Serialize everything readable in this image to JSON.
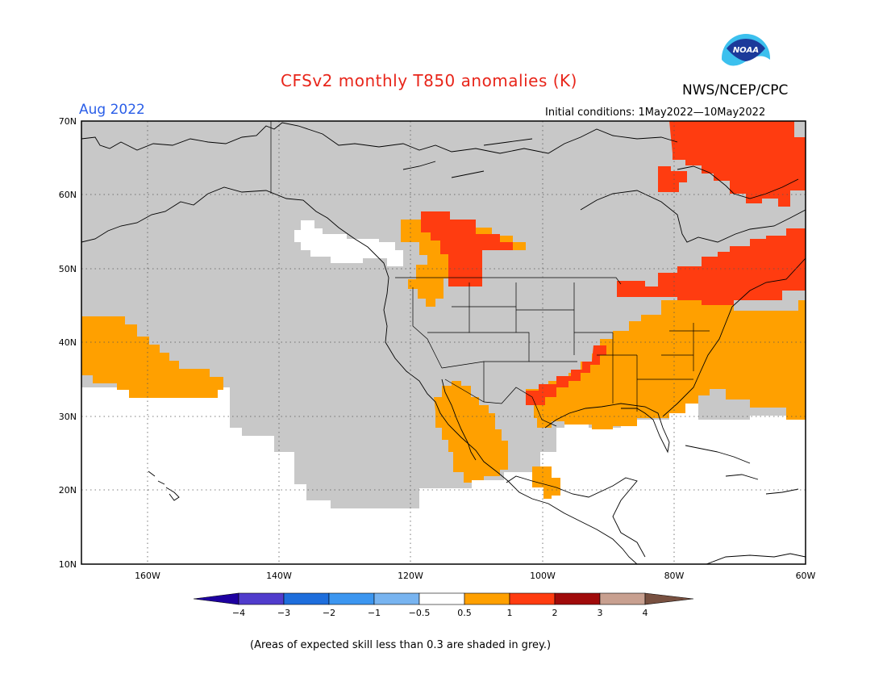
{
  "header": {
    "title": "CFSv2 monthly T850 anomalies (K)",
    "agency": "NWS/NCEP/CPC",
    "period": "Aug 2022",
    "initial_conditions": "Initial conditions: 1May2022—10May2022",
    "logo": {
      "icon": "noaa-logo-icon",
      "text": "NOAA"
    }
  },
  "map": {
    "lat_labels": [
      "70N",
      "60N",
      "50N",
      "40N",
      "30N",
      "20N",
      "10N"
    ],
    "lon_labels": [
      "160W",
      "140W",
      "120W",
      "100W",
      "80W",
      "60W"
    ],
    "lat_range": [
      10,
      70
    ],
    "lon_range": [
      -170,
      -60
    ],
    "gridlines": "dotted",
    "colors": {
      "ocean_no_skill": "#ffffff",
      "low_skill_grey": "#c8c8c8",
      "anomaly_0.5_1": "#ffa000",
      "anomaly_1_2": "#ff3c10",
      "coastline": "#000000"
    }
  },
  "colorbar": {
    "tick_labels": [
      "−4",
      "−3",
      "−2",
      "−1",
      "−0.5",
      "0.5",
      "1",
      "2",
      "3",
      "4"
    ],
    "colors": [
      "#1e00a0",
      "#503ccc",
      "#1e6edc",
      "#3c96f0",
      "#78b4f0",
      "#ffffff",
      "#ffa000",
      "#ff3c10",
      "#a00a0a",
      "#c8a090",
      "#785040"
    ]
  },
  "footnote": "(Areas of expected skill less than 0.3 are shaded in grey.)"
}
